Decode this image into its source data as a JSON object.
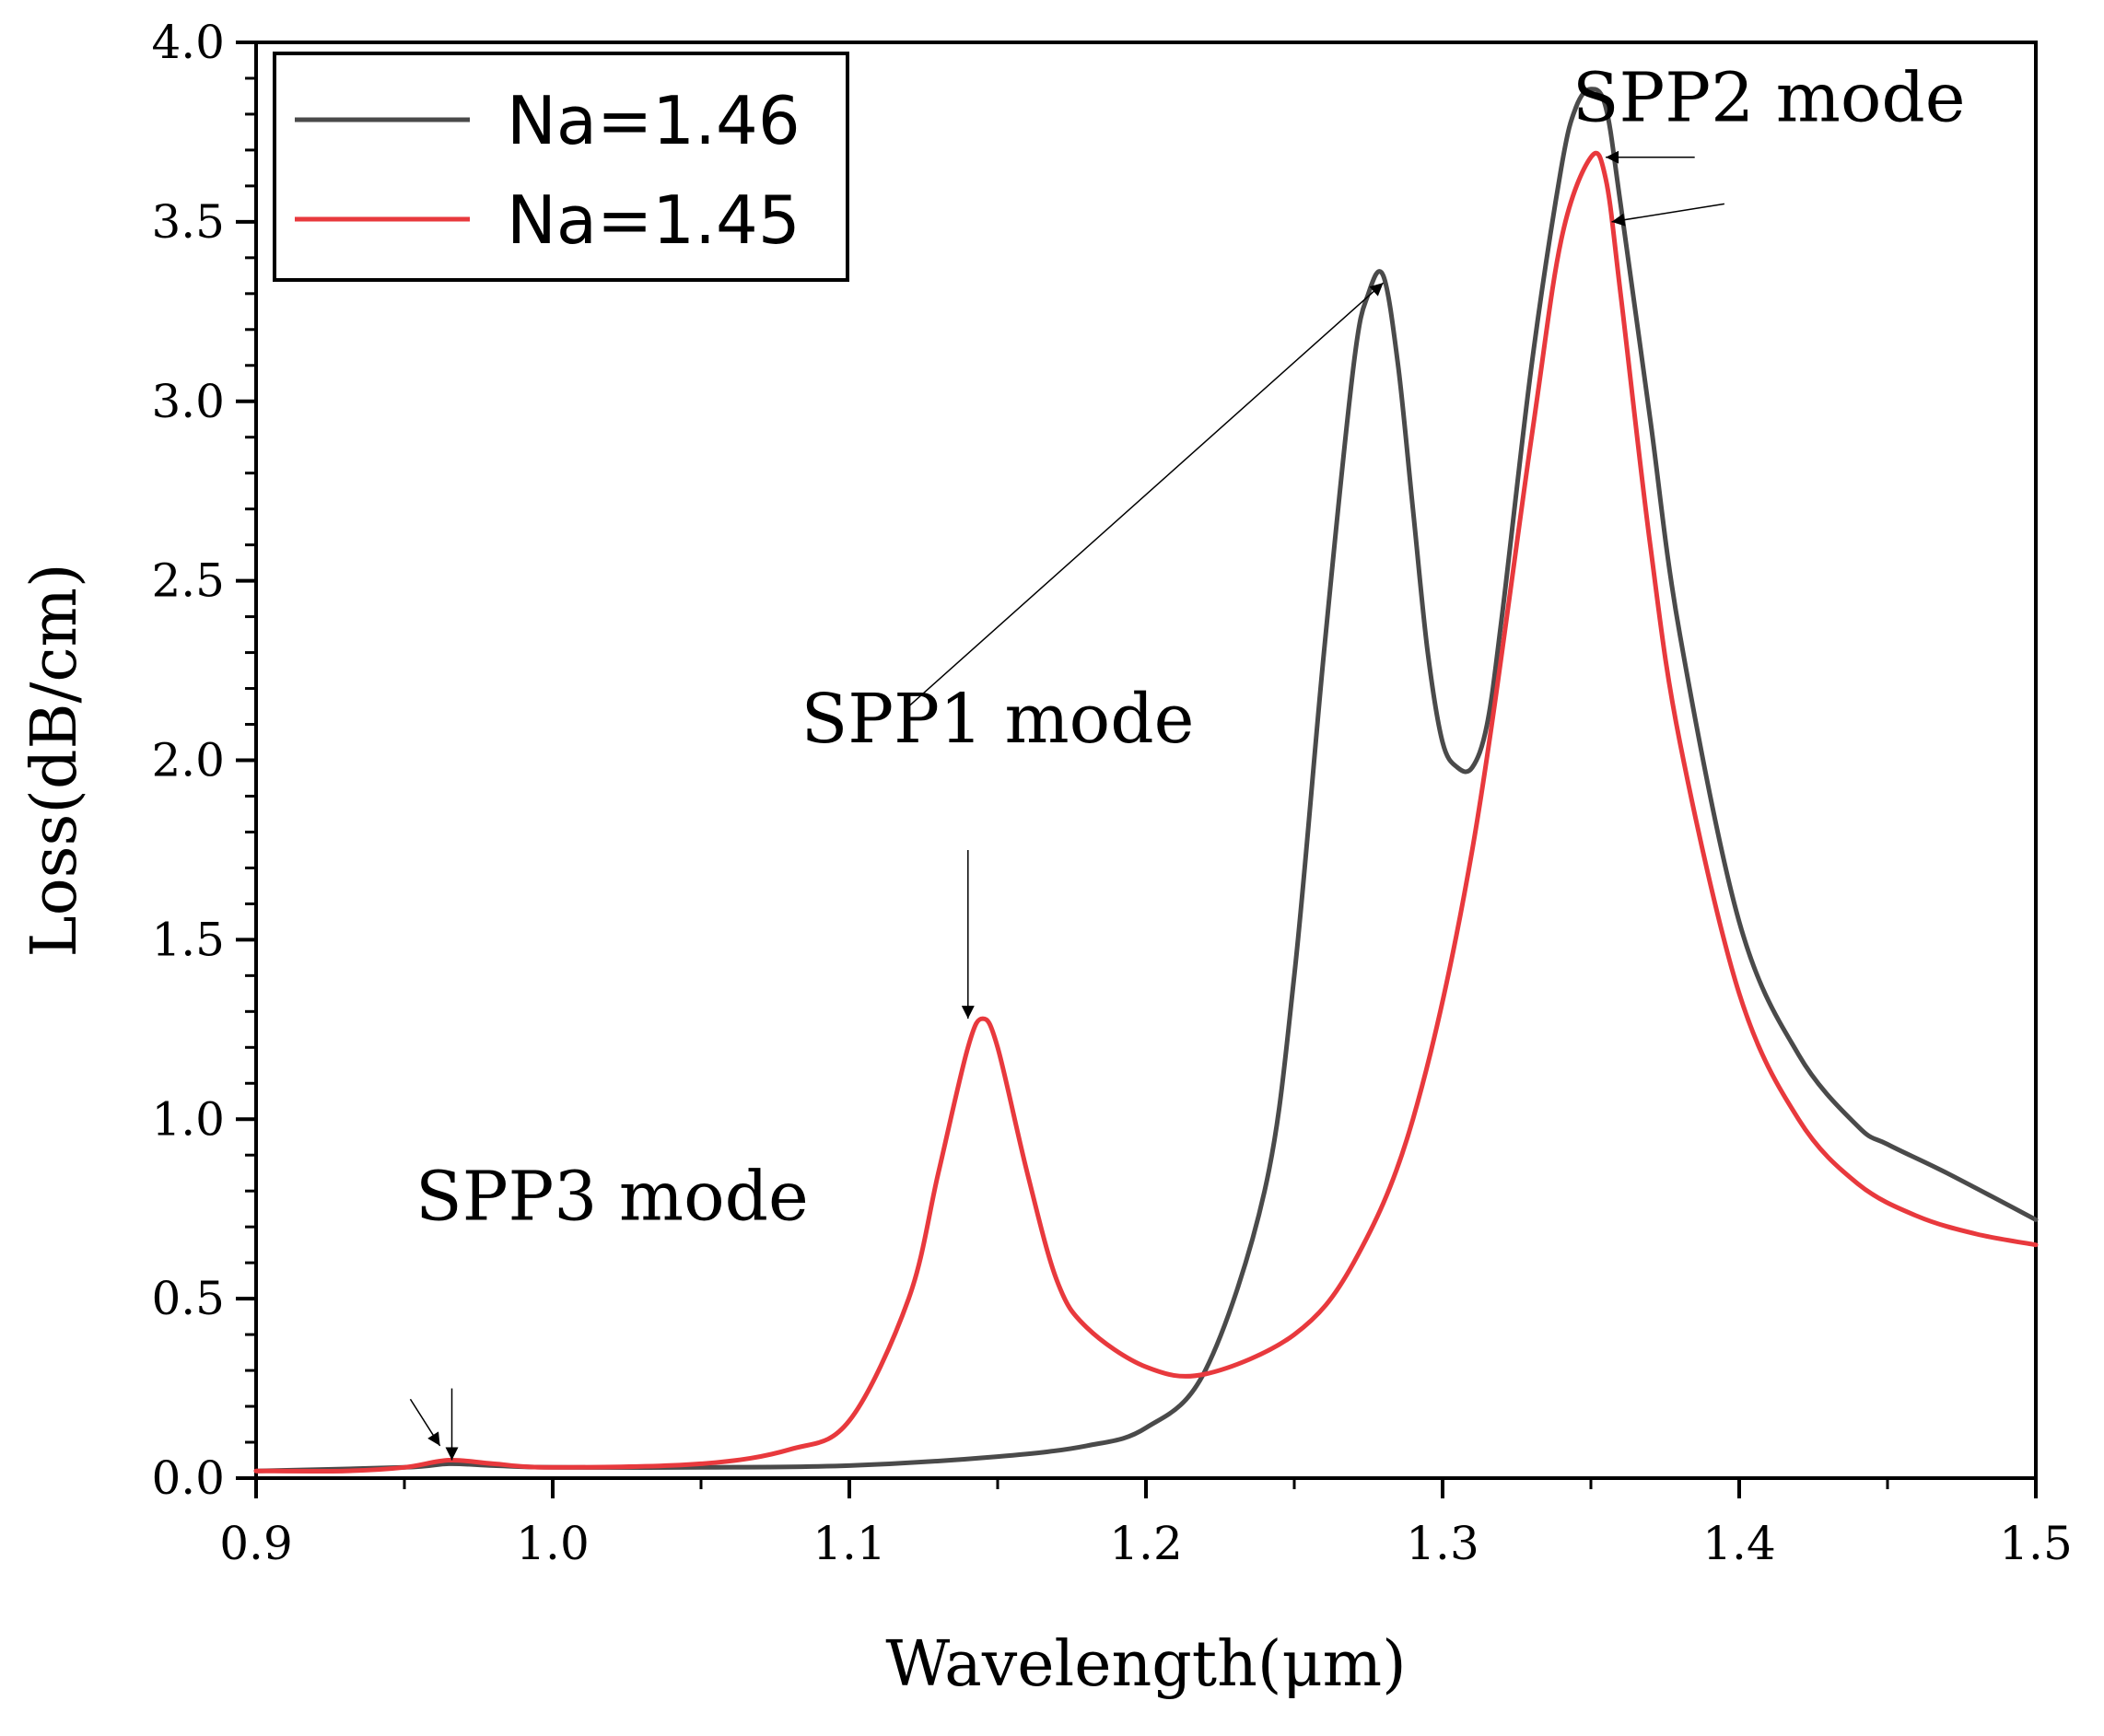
{
  "chart_data": {
    "type": "line",
    "xlabel": "Wavelength(μm)",
    "ylabel": "Loss(dB/cm)",
    "xlim": [
      0.9,
      1.5
    ],
    "ylim": [
      0.0,
      4.0
    ],
    "x_ticks": [
      "0.9",
      "1.0",
      "1.1",
      "1.2",
      "1.3",
      "1.4",
      "1.5"
    ],
    "y_ticks": [
      "0.0",
      "0.5",
      "1.0",
      "1.5",
      "2.0",
      "2.5",
      "3.0",
      "3.5",
      "4.0"
    ],
    "grid": false,
    "legend": "top-left",
    "series": [
      {
        "name": "Na=1.46",
        "color": "#4a4a4a",
        "x": [
          0.9,
          0.95,
          0.965,
          0.98,
          1.0,
          1.05,
          1.1,
          1.15,
          1.18,
          1.2,
          1.22,
          1.24,
          1.25,
          1.26,
          1.27,
          1.275,
          1.28,
          1.285,
          1.29,
          1.295,
          1.3,
          1.305,
          1.31,
          1.315,
          1.32,
          1.33,
          1.34,
          1.345,
          1.35,
          1.355,
          1.36,
          1.37,
          1.38,
          1.4,
          1.42,
          1.44,
          1.45,
          1.47,
          1.5
        ],
        "y": [
          0.02,
          0.03,
          0.04,
          0.035,
          0.03,
          0.03,
          0.035,
          0.06,
          0.09,
          0.14,
          0.3,
          0.8,
          1.4,
          2.3,
          3.1,
          3.3,
          3.35,
          3.1,
          2.7,
          2.3,
          2.05,
          1.98,
          1.98,
          2.1,
          2.4,
          3.1,
          3.65,
          3.82,
          3.87,
          3.82,
          3.55,
          2.95,
          2.35,
          1.55,
          1.18,
          0.98,
          0.93,
          0.85,
          0.72
        ]
      },
      {
        "name": "Na=1.45",
        "color": "#e8393d",
        "x": [
          0.9,
          0.93,
          0.95,
          0.965,
          0.98,
          1.0,
          1.05,
          1.08,
          1.1,
          1.12,
          1.13,
          1.14,
          1.145,
          1.15,
          1.16,
          1.17,
          1.18,
          1.2,
          1.22,
          1.25,
          1.27,
          1.29,
          1.31,
          1.33,
          1.34,
          1.35,
          1.355,
          1.36,
          1.37,
          1.38,
          1.4,
          1.42,
          1.44,
          1.46,
          1.48,
          1.5
        ],
        "y": [
          0.02,
          0.02,
          0.03,
          0.05,
          0.04,
          0.03,
          0.04,
          0.08,
          0.16,
          0.5,
          0.85,
          1.2,
          1.28,
          1.2,
          0.85,
          0.55,
          0.42,
          0.31,
          0.29,
          0.4,
          0.6,
          1.0,
          1.75,
          2.9,
          3.45,
          3.68,
          3.62,
          3.3,
          2.6,
          2.05,
          1.35,
          1.0,
          0.82,
          0.73,
          0.68,
          0.65
        ]
      }
    ],
    "annotations": [
      {
        "text": "SPP1 mode",
        "x": 1.15,
        "y": 2.05
      },
      {
        "text": "SPP2 mode",
        "x": 1.41,
        "y": 3.78
      },
      {
        "text": "SPP3 mode",
        "x": 1.02,
        "y": 0.72
      }
    ],
    "arrows": [
      {
        "from": [
          1.12,
          2.15
        ],
        "to": [
          1.28,
          3.33
        ]
      },
      {
        "from": [
          1.395,
          3.55
        ],
        "to": [
          1.357,
          3.5
        ]
      },
      {
        "from": [
          1.385,
          3.68
        ],
        "to": [
          1.355,
          3.68
        ]
      },
      {
        "from": [
          1.14,
          1.75
        ],
        "to": [
          1.14,
          1.28
        ]
      },
      {
        "from": [
          0.952,
          0.22
        ],
        "to": [
          0.962,
          0.09
        ]
      },
      {
        "from": [
          0.966,
          0.25
        ],
        "to": [
          0.966,
          0.05
        ]
      }
    ]
  }
}
